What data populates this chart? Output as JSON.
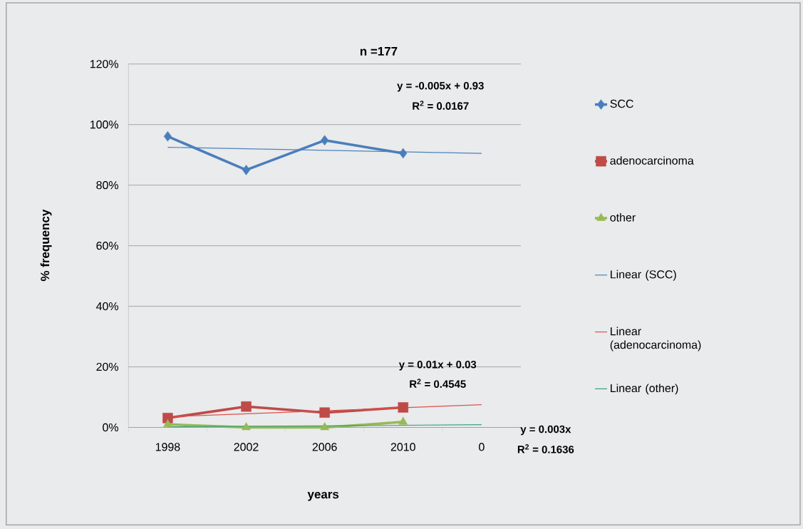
{
  "chart_data": {
    "type": "line",
    "title": "n =177",
    "xlabel": "years",
    "ylabel": "% frequency",
    "categories": [
      "1998",
      "2002",
      "2006",
      "2010",
      "0"
    ],
    "series": [
      {
        "name": "SCC",
        "color": "#4a7ebb",
        "marker": "diamond",
        "values": [
          96.1,
          85,
          94.8,
          90.5,
          null
        ]
      },
      {
        "name": "adenocarcinoma",
        "color": "#be4b48",
        "marker": "square",
        "values": [
          3.1,
          6.9,
          4.9,
          6.6,
          null
        ]
      },
      {
        "name": "other",
        "color": "#98b954",
        "marker": "triangle",
        "values": [
          1,
          0,
          0,
          1.8,
          null
        ]
      },
      {
        "name": "Linear (SCC)",
        "color": "#4f81bd",
        "marker": "none",
        "values": [
          92.5,
          92,
          91.5,
          91,
          90.5
        ]
      },
      {
        "name": "Linear (adenocarcinoma)",
        "color": "#e0504d",
        "marker": "none",
        "values": [
          3.5,
          4.5,
          5.5,
          6.5,
          7.5
        ]
      },
      {
        "name": "Linear (other)",
        "color": "#3aa17e",
        "marker": "none",
        "values": [
          0.2,
          0.4,
          0.5,
          0.7,
          0.9
        ]
      }
    ],
    "ylim": [
      0,
      120
    ],
    "yticks": [
      {
        "value": 0,
        "label": "0%"
      },
      {
        "value": 20,
        "label": "20%"
      },
      {
        "value": 40,
        "label": "40%"
      },
      {
        "value": 60,
        "label": "60%"
      },
      {
        "value": 80,
        "label": "80%"
      },
      {
        "value": 100,
        "label": "100%"
      },
      {
        "value": 120,
        "label": "120%"
      }
    ],
    "grid": "y",
    "legend": "right",
    "annotations": [
      "y = -0.005x + 0.93",
      "R$^{2}$ = 0.0167",
      "y = 0.01x + 0.03",
      "R$^{2}$ = 0.4545",
      "y = 0.003x",
      "R$^{2}$ = 0.1636"
    ]
  }
}
